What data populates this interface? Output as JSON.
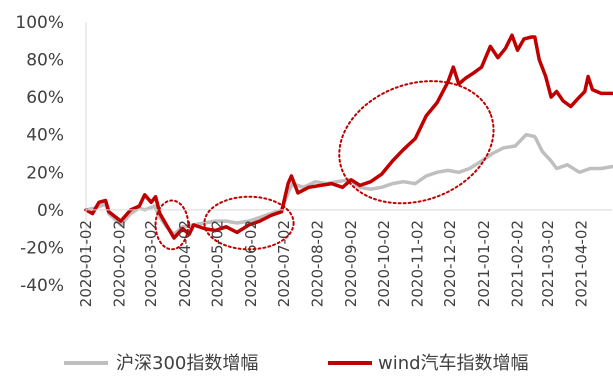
{
  "chart_data": {
    "type": "line",
    "title": "",
    "xlabel": "",
    "ylabel": "",
    "ylim": [
      -40,
      100
    ],
    "y_unit": "%",
    "y_ticks": [
      -40,
      -20,
      0,
      20,
      40,
      60,
      80,
      100
    ],
    "y_tick_labels": [
      "-40%",
      "-20%",
      "0%",
      "20%",
      "40%",
      "60%",
      "80%",
      "100%"
    ],
    "x_tick_labels": [
      "2020-01-02",
      "2020-02-02",
      "2020-03-02",
      "2020-04-02",
      "2020-05-02",
      "2020-06-02",
      "2020-07-02",
      "2020-08-02",
      "2020-09-02",
      "2020-10-02",
      "2020-11-02",
      "2020-12-02",
      "2021-01-02",
      "2021-02-02",
      "2021-03-02",
      "2021-04-02"
    ],
    "grid": false,
    "legend_position": "bottom",
    "series": [
      {
        "name": "沪深300指数增幅",
        "color": "#BFBFBF",
        "points": [
          [
            "2020-01-02",
            0
          ],
          [
            "2020-01-10",
            1
          ],
          [
            "2020-01-20",
            3
          ],
          [
            "2020-01-23",
            -2
          ],
          [
            "2020-02-03",
            -8
          ],
          [
            "2020-02-12",
            -2
          ],
          [
            "2020-02-20",
            1
          ],
          [
            "2020-02-25",
            0
          ],
          [
            "2020-03-05",
            2
          ],
          [
            "2020-03-10",
            -4
          ],
          [
            "2020-03-16",
            -9
          ],
          [
            "2020-03-23",
            -13
          ],
          [
            "2020-03-31",
            -9
          ],
          [
            "2020-04-10",
            -8
          ],
          [
            "2020-04-20",
            -7
          ],
          [
            "2020-04-30",
            -6
          ],
          [
            "2020-05-10",
            -6
          ],
          [
            "2020-05-20",
            -7
          ],
          [
            "2020-05-31",
            -6
          ],
          [
            "2020-06-10",
            -4
          ],
          [
            "2020-06-20",
            -2
          ],
          [
            "2020-06-30",
            0
          ],
          [
            "2020-07-06",
            9
          ],
          [
            "2020-07-10",
            14
          ],
          [
            "2020-07-20",
            12
          ],
          [
            "2020-07-31",
            15
          ],
          [
            "2020-08-10",
            14
          ],
          [
            "2020-08-20",
            15
          ],
          [
            "2020-08-31",
            16
          ],
          [
            "2020-09-10",
            12
          ],
          [
            "2020-09-20",
            11
          ],
          [
            "2020-09-30",
            12
          ],
          [
            "2020-10-10",
            14
          ],
          [
            "2020-10-20",
            15
          ],
          [
            "2020-10-31",
            14
          ],
          [
            "2020-11-10",
            18
          ],
          [
            "2020-11-20",
            20
          ],
          [
            "2020-11-30",
            21
          ],
          [
            "2020-12-10",
            20
          ],
          [
            "2020-12-20",
            22
          ],
          [
            "2020-12-31",
            26
          ],
          [
            "2021-01-10",
            30
          ],
          [
            "2021-01-20",
            33
          ],
          [
            "2021-01-31",
            34
          ],
          [
            "2021-02-10",
            40
          ],
          [
            "2021-02-18",
            39
          ],
          [
            "2021-02-25",
            31
          ],
          [
            "2021-03-05",
            26
          ],
          [
            "2021-03-10",
            22
          ],
          [
            "2021-03-20",
            24
          ],
          [
            "2021-03-31",
            20
          ],
          [
            "2021-04-10",
            22
          ],
          [
            "2021-04-20",
            22
          ],
          [
            "2021-04-30",
            23
          ]
        ]
      },
      {
        "name": "wind汽车指数增幅",
        "color": "#C00000",
        "points": [
          [
            "2020-01-02",
            0
          ],
          [
            "2020-01-08",
            -2
          ],
          [
            "2020-01-14",
            4
          ],
          [
            "2020-01-20",
            5
          ],
          [
            "2020-01-23",
            -1
          ],
          [
            "2020-02-03",
            -6
          ],
          [
            "2020-02-12",
            0
          ],
          [
            "2020-02-20",
            2
          ],
          [
            "2020-02-25",
            8
          ],
          [
            "2020-03-02",
            4
          ],
          [
            "2020-03-06",
            7
          ],
          [
            "2020-03-10",
            -2
          ],
          [
            "2020-03-16",
            -8
          ],
          [
            "2020-03-23",
            -15
          ],
          [
            "2020-03-31",
            -10
          ],
          [
            "2020-04-06",
            -13
          ],
          [
            "2020-04-10",
            -8
          ],
          [
            "2020-04-20",
            -10
          ],
          [
            "2020-04-30",
            -11
          ],
          [
            "2020-05-10",
            -9
          ],
          [
            "2020-05-20",
            -12
          ],
          [
            "2020-05-31",
            -8
          ],
          [
            "2020-06-10",
            -6
          ],
          [
            "2020-06-20",
            -3
          ],
          [
            "2020-06-30",
            -1
          ],
          [
            "2020-07-06",
            14
          ],
          [
            "2020-07-09",
            18
          ],
          [
            "2020-07-15",
            9
          ],
          [
            "2020-07-25",
            12
          ],
          [
            "2020-08-05",
            13
          ],
          [
            "2020-08-15",
            14
          ],
          [
            "2020-08-25",
            12
          ],
          [
            "2020-09-02",
            16
          ],
          [
            "2020-09-10",
            13
          ],
          [
            "2020-09-20",
            15
          ],
          [
            "2020-09-30",
            19
          ],
          [
            "2020-10-10",
            26
          ],
          [
            "2020-10-20",
            32
          ],
          [
            "2020-10-31",
            38
          ],
          [
            "2020-11-10",
            50
          ],
          [
            "2020-11-20",
            57
          ],
          [
            "2020-11-30",
            68
          ],
          [
            "2020-12-05",
            76
          ],
          [
            "2020-12-10",
            67
          ],
          [
            "2020-12-16",
            70
          ],
          [
            "2020-12-24",
            73
          ],
          [
            "2020-12-31",
            76
          ],
          [
            "2021-01-08",
            87
          ],
          [
            "2021-01-15",
            81
          ],
          [
            "2021-01-22",
            86
          ],
          [
            "2021-01-28",
            93
          ],
          [
            "2021-02-02",
            85
          ],
          [
            "2021-02-08",
            91
          ],
          [
            "2021-02-15",
            92
          ],
          [
            "2021-02-18",
            92
          ],
          [
            "2021-02-22",
            80
          ],
          [
            "2021-02-28",
            71
          ],
          [
            "2021-03-05",
            60
          ],
          [
            "2021-03-10",
            63
          ],
          [
            "2021-03-16",
            58
          ],
          [
            "2021-03-23",
            55
          ],
          [
            "2021-03-31",
            60
          ],
          [
            "2021-04-05",
            63
          ],
          [
            "2021-04-08",
            71
          ],
          [
            "2021-04-12",
            64
          ],
          [
            "2021-04-20",
            62
          ],
          [
            "2021-04-30",
            62
          ]
        ]
      }
    ],
    "annotations": [
      {
        "shape": "dotted-ellipse",
        "color": "#C00000",
        "cx": "2020-03-21",
        "cy": -8,
        "rx_days": 15,
        "ry": 13
      },
      {
        "shape": "dotted-ellipse",
        "color": "#C00000",
        "cx": "2020-05-31",
        "cy": -7,
        "rx_days": 41,
        "ry": 14
      },
      {
        "shape": "dotted-ellipse",
        "color": "#C00000",
        "cx": "2020-11-01",
        "cy": 36,
        "rx_days": 73,
        "ry": 31
      }
    ]
  }
}
